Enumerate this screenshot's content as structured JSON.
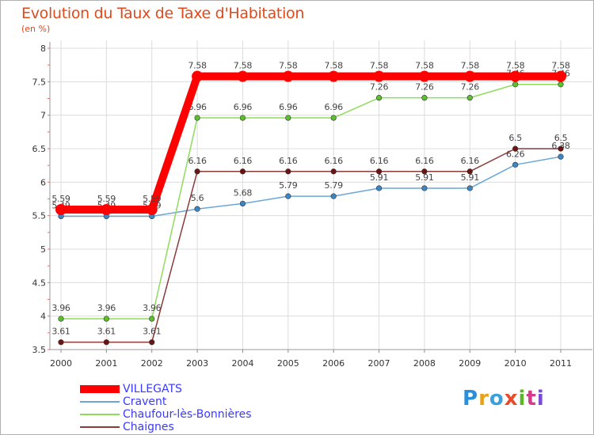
{
  "chart_data": {
    "type": "line",
    "title": "Evolution du Taux de Taxe d'Habitation",
    "subtitle": "(en %)",
    "xlabel": "",
    "ylabel": "",
    "categories": [
      "2000",
      "2001",
      "2002",
      "2003",
      "2004",
      "2005",
      "2006",
      "2007",
      "2008",
      "2009",
      "2010",
      "2011"
    ],
    "ylim": [
      3.5,
      8
    ],
    "yticks": [
      "3.5",
      "4",
      "4.5",
      "5",
      "5.5",
      "6",
      "6.5",
      "7",
      "7.5",
      "8"
    ],
    "series": [
      {
        "name": "Cravent",
        "color": "#6aa7d6",
        "marker": "#3d86c6",
        "values": [
          5.49,
          5.49,
          5.49,
          5.6,
          5.68,
          5.79,
          5.79,
          5.91,
          5.91,
          5.91,
          6.26,
          6.38
        ],
        "labels": [
          "5.49",
          "5.49",
          "5.49",
          "5.6",
          "5.68",
          "5.79",
          "5.79",
          "5.91",
          "5.91",
          "5.91",
          "6.26",
          "6.38"
        ]
      },
      {
        "name": "Chaufour-lès-Bonnières",
        "color": "#8fdc5a",
        "marker": "#5cc02c",
        "values": [
          3.96,
          3.96,
          3.96,
          6.96,
          6.96,
          6.96,
          6.96,
          7.26,
          7.26,
          7.26,
          7.46,
          7.46
        ],
        "labels": [
          "3.96",
          "3.96",
          "3.96",
          "6.96",
          "6.96",
          "6.96",
          "6.96",
          "7.26",
          "7.26",
          "7.26",
          "7.46",
          "7.46"
        ]
      },
      {
        "name": "Chaignes",
        "color": "#8b3a3a",
        "marker": "#6b1414",
        "values": [
          3.61,
          3.61,
          3.61,
          6.16,
          6.16,
          6.16,
          6.16,
          6.16,
          6.16,
          6.16,
          6.5,
          6.5
        ],
        "labels": [
          "3.61",
          "3.61",
          "3.61",
          "6.16",
          "6.16",
          "6.16",
          "6.16",
          "6.16",
          "6.16",
          "6.16",
          "6.5",
          "6.5"
        ]
      },
      {
        "name": "VILLEGATS",
        "color": "#ff0000",
        "marker": "#ff0000",
        "values": [
          5.59,
          5.59,
          5.59,
          7.58,
          7.58,
          7.58,
          7.58,
          7.58,
          7.58,
          7.58,
          7.58,
          7.58
        ],
        "labels": [
          "5.59",
          "5.59",
          "5.59",
          "7.58",
          "7.58",
          "7.58",
          "7.58",
          "7.58",
          "7.58",
          "7.58",
          "7.58",
          "7.58"
        ]
      }
    ],
    "legend": [
      "VILLEGATS",
      "Cravent",
      "Chaufour-lès-Bonnières",
      "Chaignes"
    ]
  },
  "logo": {
    "letters": [
      "P",
      "r",
      "o",
      "x",
      "i",
      "t",
      "i"
    ],
    "colors": [
      "#2a8fd8",
      "#e8a21a",
      "#3aa0de",
      "#e84a2a",
      "#5ab828",
      "#d83a8a",
      "#7a4ad8"
    ]
  }
}
